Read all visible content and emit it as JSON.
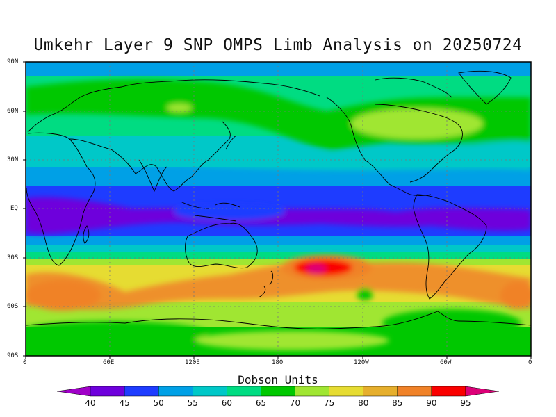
{
  "title": "Umkehr Layer 9 SNP OMPS Limb Analysis on 20250724",
  "lat_labels": [
    "90N",
    "60N",
    "30N",
    "EQ",
    "30S",
    "60S",
    "90S"
  ],
  "lon_labels": [
    "0",
    "60E",
    "120E",
    "180",
    "120W",
    "60W",
    "0"
  ],
  "colorbar": {
    "title": "Dobson Units",
    "ticks": [
      "40",
      "45",
      "50",
      "55",
      "60",
      "65",
      "70",
      "75",
      "80",
      "85",
      "90",
      "95"
    ],
    "colors": [
      "#a000c8",
      "#6e00dc",
      "#1e3cff",
      "#00a0e6",
      "#00c8c8",
      "#00dc82",
      "#00c800",
      "#a0e632",
      "#e6dc32",
      "#e6af2d",
      "#f08228",
      "#fa0000",
      "#dc0078"
    ]
  },
  "map": {
    "lat_range": [
      -90,
      90
    ],
    "lon_range": [
      0,
      360
    ],
    "grid": true,
    "projection": "cylindrical equidistant",
    "features": [
      "continent coastlines",
      "dashed lat/lon grid"
    ],
    "field_highlights": [
      {
        "region": "equatorial band",
        "level": "45-50"
      },
      {
        "region": "south pacific near 35S 160W",
        "level": "95"
      },
      {
        "region": "north america near 55N",
        "level": "75"
      },
      {
        "region": "southern ocean near 45S",
        "level": "85-90"
      }
    ]
  }
}
